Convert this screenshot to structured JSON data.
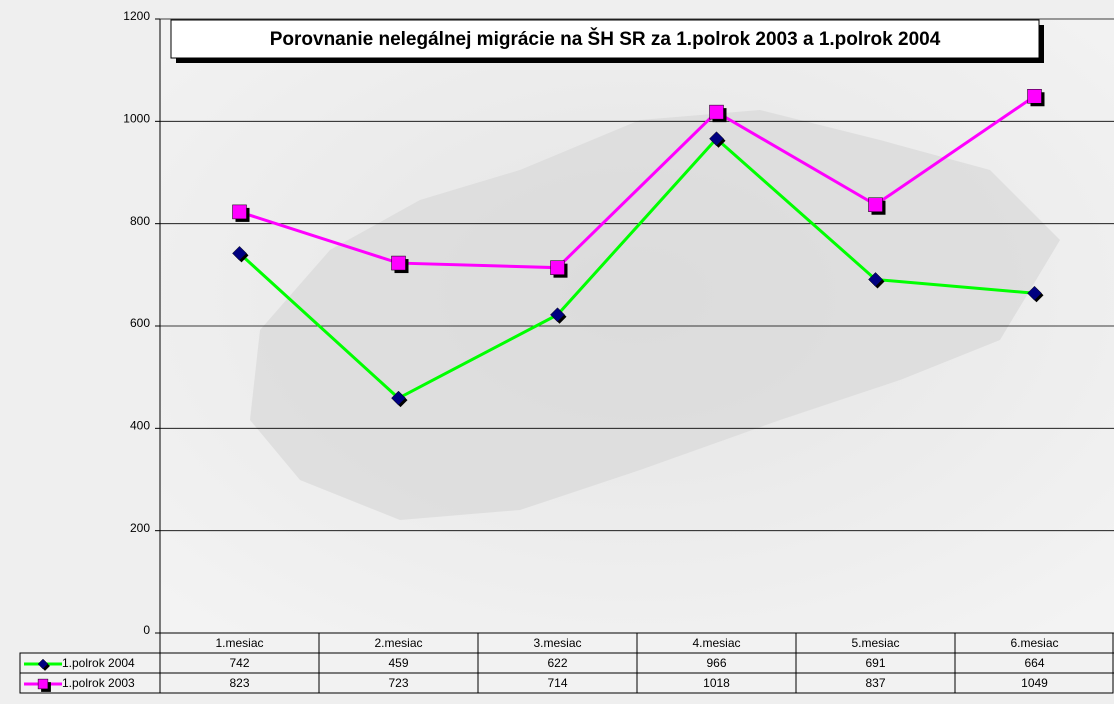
{
  "chart_data": {
    "type": "line",
    "title": "Porovnanie nelegálnej migrácie na ŠH SR za 1.polrok 2003 a 1.polrok 2004",
    "categories": [
      "1.mesiac",
      "2.mesiac",
      "3.mesiac",
      "4.mesiac",
      "5.mesiac",
      "6.mesiac"
    ],
    "series": [
      {
        "name": "1.polrok 2004",
        "color": "#00ff00",
        "marker": "diamond",
        "marker_color": "#000080",
        "values": [
          742,
          459,
          622,
          966,
          691,
          664
        ]
      },
      {
        "name": "1.polrok 2003",
        "color": "#ff00ff",
        "marker": "square",
        "marker_color": "#ff00ff",
        "values": [
          823,
          723,
          714,
          1018,
          837,
          1049
        ]
      }
    ],
    "ylim": [
      0,
      1200
    ],
    "yticks": [
      0,
      200,
      400,
      600,
      800,
      1000,
      1200
    ],
    "grid": true,
    "data_table": true
  }
}
